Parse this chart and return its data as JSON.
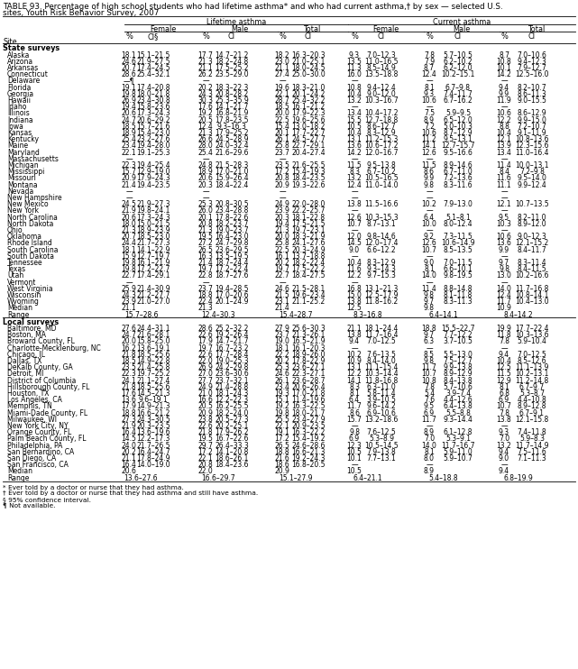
{
  "title_line1": "TABLE 93. Percentage of high school students who had lifetime asthma* and who had current asthma,† by sex — selected U.S.",
  "title_line2": "sites, Youth Risk Behavior Survey, 2007",
  "footnotes": [
    "* Ever told by a doctor or nurse that they had asthma.",
    "† Ever told by a doctor or nurse that they had asthma and still have asthma.",
    "§ 95% confidence interval.",
    "¶ Not available."
  ],
  "state_rows": [
    [
      "Alaska",
      "18.1",
      "15.1–21.5",
      "17.7",
      "14.7–21.2",
      "18.2",
      "16.3–20.3",
      "9.3",
      "7.0–12.3",
      "7.8",
      "5.7–10.5",
      "8.7",
      "7.0–10.6"
    ],
    [
      "Arizona",
      "24.6",
      "21.9–27.5",
      "21.3",
      "18.2–24.8",
      "23.0",
      "21.0–25.1",
      "13.5",
      "11.0–16.5",
      "7.9",
      "6.2–10.2",
      "10.8",
      "9.4–12.3"
    ],
    [
      "Arkansas",
      "20.7",
      "17.4–24.5",
      "21.1",
      "17.5–25.2",
      "21.1",
      "18.0–24.5",
      "11.3",
      "8.5–14.9",
      "8.7",
      "6.2–12.0",
      "10.1",
      "7.9–12.7"
    ],
    [
      "Connecticut",
      "28.6",
      "25.4–32.1",
      "26.2",
      "23.5–29.0",
      "27.4",
      "25.0–30.0",
      "16.0",
      "13.5–18.8",
      "12.4",
      "10.2–15.1",
      "14.2",
      "12.5–16.0"
    ],
    [
      "Delaware",
      "—¶",
      "",
      "—",
      "",
      "—",
      "",
      "—",
      "",
      "—",
      "",
      "—",
      ""
    ],
    [
      "Florida",
      "19.1",
      "17.4–20.8",
      "20.2",
      "18.3–22.3",
      "19.6",
      "18.3–21.0",
      "10.8",
      "9.4–12.4",
      "8.1",
      "6.7–9.8",
      "9.4",
      "8.2–10.7"
    ],
    [
      "Georgia",
      "19.8",
      "18.0–21.8",
      "24.3",
      "20.8–28.2",
      "22.1",
      "20.1–24.2",
      "10.4",
      "9.0–12.0",
      "9.3",
      "7.4–11.7",
      "9.9",
      "8.6–11.3"
    ],
    [
      "Hawaii",
      "26.9",
      "23.4–30.8",
      "30.3",
      "25.3–35.9",
      "28.7",
      "25.4–32.2",
      "13.2",
      "10.3–16.7",
      "10.6",
      "6.7–16.2",
      "11.9",
      "9.0–15.5"
    ],
    [
      "Idaho",
      "19.4",
      "15.8–23.6",
      "17.6",
      "14.1–21.7",
      "18.5",
      "16.1–21.2",
      "—",
      "",
      "—",
      "",
      "—",
      ""
    ],
    [
      "Illinois",
      "20.6",
      "17.3–24.3",
      "19.2",
      "16.8–21.9",
      "20.0",
      "17.9–22.3",
      "13.4",
      "10.4–17.2",
      "7.5",
      "5.9–9.5",
      "10.6",
      "8.6–12.9"
    ],
    [
      "Indiana",
      "24.7",
      "20.6–29.2",
      "20.5",
      "17.8–23.5",
      "22.5",
      "19.6–25.6",
      "15.5",
      "12.7–18.8",
      "8.9",
      "6.5–12.0",
      "12.2",
      "9.9–15.0"
    ],
    [
      "Iowa",
      "18.5",
      "15.7–21.6",
      "12.4",
      "9.3–16.3",
      "15.4",
      "13.0–18.2",
      "10.5",
      "8.6–12.7",
      "7.2",
      "5.0–10.3",
      "8.8",
      "7.2–10.7"
    ],
    [
      "Kansas",
      "18.9",
      "15.4–23.0",
      "21.3",
      "17.9–25.2",
      "20.1",
      "17.7–22.7",
      "10.4",
      "8.3–12.9",
      "10.6",
      "8.7–12.9",
      "10.4",
      "9.1–11.9"
    ],
    [
      "Kentucky",
      "25.4",
      "23.2–27.6",
      "26.6",
      "24.5–28.9",
      "26.1",
      "24.5–27.7",
      "13.1",
      "11.2–15.3",
      "11.2",
      "9.5–13.1",
      "12.1",
      "10.8–13.6"
    ],
    [
      "Maine",
      "23.4",
      "19.4–28.0",
      "28.0",
      "24.0–32.4",
      "25.8",
      "22.7–29.1",
      "13.6",
      "10.6–17.2",
      "14.1",
      "12.7–15.7",
      "13.9",
      "12.3–15.6"
    ],
    [
      "Maryland",
      "22.1",
      "19.1–25.3",
      "25.4",
      "21.6–29.6",
      "23.7",
      "20.4–27.4",
      "14.2",
      "12.0–16.7",
      "12.6",
      "9.5–16.6",
      "13.4",
      "11.0–16.4"
    ],
    [
      "Massachusetts",
      "—",
      "",
      "—",
      "",
      "—",
      "",
      "—",
      "",
      "—",
      "",
      "—",
      ""
    ],
    [
      "Michigan",
      "22.3",
      "19.4–25.4",
      "24.8",
      "21.5–28.3",
      "23.5",
      "21.6–25.5",
      "11.5",
      "9.5–13.8",
      "11.5",
      "8.9–14.6",
      "11.4",
      "10.0–13.1"
    ],
    [
      "Mississippi",
      "15.7",
      "12.9–19.0",
      "18.9",
      "17.0–21.0",
      "17.2",
      "15.4–19.3",
      "8.3",
      "6.7–10.2",
      "8.6",
      "6.7–11.0",
      "8.4",
      "7.2–9.8"
    ],
    [
      "Missouri",
      "20.9",
      "17.9–24.3",
      "20.6",
      "15.9–26.4",
      "20.8",
      "18.4–23.5",
      "13.2",
      "10.5–16.5",
      "9.9",
      "7.2–13.6",
      "11.6",
      "9.5–14.0"
    ],
    [
      "Montana",
      "21.4",
      "19.4–23.5",
      "20.3",
      "18.4–22.4",
      "20.9",
      "19.3–22.6",
      "12.4",
      "11.0–14.0",
      "9.8",
      "8.3–11.6",
      "11.1",
      "9.9–12.4"
    ],
    [
      "Nevada",
      "—",
      "",
      "—",
      "",
      "—",
      "",
      "—",
      "",
      "—",
      "",
      "—",
      ""
    ],
    [
      "New Hampshire",
      "—",
      "",
      "—",
      "",
      "—",
      "",
      "—",
      "",
      "—",
      "",
      "—",
      ""
    ],
    [
      "New Mexico",
      "24.5",
      "21.9–27.3",
      "25.3",
      "20.8–30.5",
      "24.9",
      "22.0–28.0",
      "13.8",
      "11.5–16.6",
      "10.2",
      "7.9–13.0",
      "12.1",
      "10.7–13.5"
    ],
    [
      "New York",
      "21.9",
      "19.8–24.1",
      "26.0",
      "23.4–28.8",
      "23.9",
      "22.2–25.7",
      "—",
      "",
      "—",
      "",
      "—",
      ""
    ],
    [
      "North Carolina",
      "20.6",
      "17.3–24.3",
      "20.1",
      "17.8–22.6",
      "20.3",
      "18.1–22.8",
      "12.6",
      "10.3–15.3",
      "6.4",
      "5.1–8.1",
      "9.5",
      "8.2–11.0"
    ],
    [
      "North Dakota",
      "18.0",
      "15.0–21.5",
      "20.8",
      "18.2–23.7",
      "19.4",
      "17.5–21.5",
      "10.7",
      "8.7–13.1",
      "10.0",
      "8.0–12.4",
      "10.3",
      "8.9–12.0"
    ],
    [
      "Ohio",
      "21.3",
      "18.9–23.9",
      "21.3",
      "19.0–23.7",
      "21.3",
      "19.7–23.1",
      "—",
      "",
      "—",
      "",
      "—",
      ""
    ],
    [
      "Oklahoma",
      "20.7",
      "18.5–23.0",
      "19.5",
      "16.4–23.0",
      "20.0",
      "18.3–21.9",
      "12.0",
      "9.8–14.6",
      "9.2",
      "7.3–11.5",
      "10.6",
      "9.0–12.3"
    ],
    [
      "Rhode Island",
      "24.4",
      "21.7–27.3",
      "27.2",
      "24.7–29.8",
      "25.8",
      "24.1–27.6",
      "14.5",
      "12.0–17.4",
      "12.6",
      "10.6–14.9",
      "13.6",
      "12.1–15.2"
    ],
    [
      "South Carolina",
      "18.1",
      "14.1–22.9",
      "26.5",
      "23.6–29.5",
      "22.5",
      "20.3–24.9",
      "9.0",
      "6.6–12.2",
      "10.7",
      "8.5–13.5",
      "9.9",
      "8.4–11.7"
    ],
    [
      "South Dakota",
      "15.9",
      "12.7–19.7",
      "16.3",
      "13.5–19.5",
      "16.1",
      "13.7–18.8",
      "—",
      "",
      "—",
      "",
      "—",
      ""
    ],
    [
      "Tennessee",
      "19.8",
      "16.1–21.9",
      "21.4",
      "18.7–24.4",
      "20.2",
      "18.2–22.4",
      "10.4",
      "8.3–12.9",
      "9.0",
      "7.0–11.5",
      "9.7",
      "8.3–11.4"
    ],
    [
      "Texas",
      "19.8",
      "17.2–22.7",
      "19.7",
      "17.2–22.4",
      "19.7",
      "17.5–22.2",
      "11.6",
      "9.3–14.3",
      "8.1",
      "6.6–10.1",
      "9.8",
      "8.4–11.5"
    ],
    [
      "Utah",
      "22.7",
      "17.4–29.1",
      "22.8",
      "18.7–27.6",
      "22.7",
      "18.4–27.5",
      "12.2",
      "9.7–15.3",
      "14.0",
      "9.8–19.5",
      "13.0",
      "10.2–16.6"
    ],
    [
      "Vermont",
      "—",
      "",
      "—",
      "",
      "—",
      "",
      "—",
      "",
      "—",
      "",
      "—",
      ""
    ],
    [
      "West Virginia",
      "25.9",
      "21.4–30.9",
      "23.7",
      "19.4–28.5",
      "24.6",
      "21.5–28.1",
      "16.8",
      "13.1–21.3",
      "11.4",
      "8.8–14.8",
      "14.0",
      "11.7–16.8"
    ],
    [
      "Wisconsin",
      "24.3",
      "21.2–27.7",
      "18.8",
      "17.0–20.6",
      "21.5",
      "19.6–23.4",
      "15.0",
      "12.5–17.9",
      "9.8",
      "8.1–11.8",
      "12.4",
      "10.8–14.1"
    ],
    [
      "Wyoming",
      "23.9",
      "21.0–27.0",
      "22.4",
      "20.1–24.9",
      "23.1",
      "21.1–25.2",
      "13.8",
      "11.8–16.2",
      "9.7",
      "8.3–11.3",
      "11.7",
      "10.4–13.0"
    ]
  ],
  "state_median": [
    "Median",
    "21.1",
    "",
    "21.3",
    "",
    "21.4",
    "",
    "12.5",
    "",
    "9.8",
    "",
    "10.9",
    ""
  ],
  "state_range": [
    "Range",
    "15.7–28.6",
    "",
    "12.4–30.3",
    "",
    "15.4–28.7",
    "",
    "8.3–16.8",
    "",
    "6.4–14.1",
    "",
    "8.4–14.2",
    ""
  ],
  "local_rows": [
    [
      "Baltimore, MD",
      "27.6",
      "24.4–31.1",
      "28.6",
      "25.2–32.2",
      "27.9",
      "25.6–30.3",
      "21.1",
      "18.1–24.4",
      "18.8",
      "15.5–22.7",
      "19.9",
      "17.7–22.4"
    ],
    [
      "Boston, MA",
      "24.7",
      "21.6–28.1",
      "22.6",
      "19.2–26.4",
      "23.7",
      "21.3–26.1",
      "13.8",
      "11.7–16.4",
      "9.7",
      "7.7–12.2",
      "11.8",
      "10.3–13.6"
    ],
    [
      "Broward County, FL",
      "20.0",
      "15.8–25.0",
      "17.9",
      "14.7–21.7",
      "19.0",
      "16.5–21.9",
      "9.4",
      "7.0–12.5",
      "6.3",
      "3.7–10.5",
      "7.8",
      "5.9–10.4"
    ],
    [
      "Charlotte-Mecklenburg, NC",
      "16.2",
      "13.6–19.1",
      "19.7",
      "16.7–23.2",
      "18.1",
      "16.1–20.3",
      "—",
      "",
      "—",
      "",
      "—",
      ""
    ],
    [
      "Chicago, IL",
      "21.8",
      "18.5–25.6",
      "22.6",
      "17.7–28.4",
      "22.2",
      "18.9–26.0",
      "10.2",
      "7.6–13.5",
      "8.5",
      "5.5–13.0",
      "9.4",
      "7.0–12.5"
    ],
    [
      "Dallas, TX",
      "18.5",
      "14.9–22.8",
      "22.0",
      "19.0–25.3",
      "20.2",
      "17.8–22.9",
      "10.9",
      "8.4–14.0",
      "9.8",
      "7.5–12.7",
      "10.4",
      "8.5–12.6"
    ],
    [
      "DeKalb County, GA",
      "23.5",
      "21.4–25.8",
      "26.9",
      "24.2–29.8",
      "25.3",
      "23.6–27.1",
      "13.1",
      "11.1–15.4",
      "11.7",
      "9.9–13.8",
      "12.5",
      "11.1–13.9"
    ],
    [
      "Detroit, MI",
      "22.3",
      "19.7–25.2",
      "27.0",
      "23.6–30.6",
      "24.6",
      "22.3–27.1",
      "12.2",
      "10.3–14.4",
      "10.7",
      "8.9–12.9",
      "11.5",
      "10.2–13.1"
    ],
    [
      "District of Columbia",
      "24.1",
      "21.1–27.4",
      "27.7",
      "23.7–32.1",
      "26.1",
      "23.6–28.7",
      "14.1",
      "11.8–16.8",
      "10.8",
      "8.4–13.8",
      "12.9",
      "11.2–14.8"
    ],
    [
      "Hillsborough County, FL",
      "21.8",
      "18.5–25.6",
      "24.9",
      "21.4–28.8",
      "23.4",
      "20.6–26.4",
      "8.3",
      "6.3–11.0",
      "7.8",
      "5.7–10.6",
      "8.1",
      "6.7–9.7"
    ],
    [
      "Houston, TX",
      "17.6",
      "14.5–21.3",
      "21.0",
      "18.1–24.3",
      "19.3",
      "17.0–21.8",
      "8.1",
      "5.8–11.4",
      "5.4",
      "3.9–7.4",
      "6.8",
      "5.3–8.7"
    ],
    [
      "Los Angeles, CA",
      "13.6",
      "9.6–19.1",
      "16.6",
      "12.2–22.3",
      "15.1",
      "11.4–19.6",
      "6.4",
      "3.9–10.5",
      "7.6",
      "4.4–12.6",
      "6.9",
      "4.4–10.8"
    ],
    [
      "Memphis, TN",
      "17.9",
      "14.9–21.3",
      "20.5",
      "16.2–25.5",
      "19.2",
      "16.3–22.5",
      "11.7",
      "9.6–14.2",
      "9.5",
      "6.4–13.8",
      "10.7",
      "8.9–12.8"
    ],
    [
      "Miami-Dade County, FL",
      "18.8",
      "16.6–21.2",
      "20.9",
      "18.2–24.0",
      "19.8",
      "18.0–21.7",
      "8.6",
      "6.9–10.6",
      "6.9",
      "5.5–8.8",
      "7.8",
      "6.7–9.1"
    ],
    [
      "Milwaukee, WI",
      "27.3",
      "24.3–30.5",
      "23.8",
      "20.5–27.3",
      "25.5",
      "23.4–27.9",
      "15.7",
      "13.2–18.6",
      "11.7",
      "9.3–14.4",
      "13.8",
      "12.1–15.8"
    ],
    [
      "New York City, NY",
      "21.9",
      "20.3–23.5",
      "22.6",
      "20.2–25.1",
      "22.1",
      "20.9–23.5",
      "—",
      "",
      "—",
      "",
      "—",
      ""
    ],
    [
      "Orange County, FL",
      "16.4",
      "13.6–19.6",
      "21.8",
      "17.9–26.2",
      "19.1",
      "16.3–22.2",
      "9.8",
      "7.6–12.5",
      "8.9",
      "6.1–12.8",
      "9.3",
      "7.4–11.8"
    ],
    [
      "Palm Beach County, FL",
      "14.5",
      "12.2–17.3",
      "19.5",
      "16.7–22.6",
      "17.2",
      "15.4–19.2",
      "6.9",
      "5.3–8.9",
      "7.0",
      "5.3–9.1",
      "7.0",
      "5.9–8.3"
    ],
    [
      "Philadelphia, PA",
      "24.0",
      "21.7–26.5",
      "29.7",
      "26.4–33.3",
      "26.5",
      "24.6–28.6",
      "12.3",
      "10.5–14.5",
      "14.0",
      "11.7–16.7",
      "13.2",
      "11.7–14.9"
    ],
    [
      "San Bernardino, CA",
      "20.2",
      "16.4–24.7",
      "17.2",
      "14.1–20.8",
      "18.8",
      "16.6–21.3",
      "10.5",
      "7.9–13.8",
      "8.1",
      "5.9–11.0",
      "9.4",
      "7.5–11.6"
    ],
    [
      "San Diego, CA",
      "21.1",
      "17.8–24.9",
      "22.1",
      "18.6–26.1",
      "21.6",
      "19.2–24.3",
      "10.1",
      "7.7–13.1",
      "8.0",
      "5.9–10.7",
      "9.0",
      "7.1–11.3"
    ],
    [
      "San Francisco, CA",
      "16.4",
      "14.0–19.0",
      "20.8",
      "18.4–23.6",
      "18.6",
      "16.8–20.5",
      "—",
      "",
      "—",
      "",
      "—",
      ""
    ]
  ],
  "local_median": [
    "Median",
    "20.6",
    "",
    "22.0",
    "",
    "20.9",
    "",
    "10.5",
    "",
    "8.9",
    "",
    "9.4",
    ""
  ],
  "local_range": [
    "Range",
    "13.6–27.6",
    "",
    "16.6–29.7",
    "",
    "15.1–27.9",
    "",
    "6.4–21.1",
    "",
    "5.4–18.8",
    "",
    "6.8–19.9",
    ""
  ]
}
